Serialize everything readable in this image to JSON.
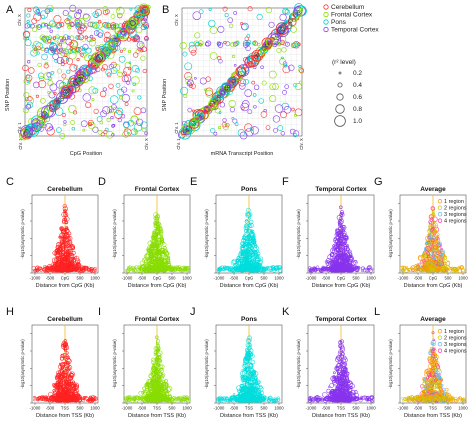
{
  "panels": {
    "A": {
      "label": "A",
      "xlabel": "CpG Position",
      "ylabel": "SNP Position",
      "y_top": "Chr. X",
      "y_bottom": "Chr. 1",
      "x_left": "Chr. 1",
      "x_right": "Chr. X"
    },
    "B": {
      "label": "B",
      "xlabel": "mRNA Transcript Position",
      "ylabel": "SNP Position",
      "y_top": "Chr. X",
      "y_bottom": "Chr. 1",
      "x_left": "Chr. 1",
      "x_right": "Chr. X"
    }
  },
  "legend_regions": {
    "items": [
      {
        "label": "Cerebellum",
        "color": "#ff3333"
      },
      {
        "label": "Frontal Cortex",
        "color": "#88dd00"
      },
      {
        "label": "Pons",
        "color": "#00cccc"
      },
      {
        "label": "Temporal Cortex",
        "color": "#8844ee"
      }
    ]
  },
  "legend_r2": {
    "title": "(r² level)",
    "levels": [
      "0.2",
      "0.4",
      "0.6",
      "0.8",
      "1.0"
    ]
  },
  "row1": {
    "xlabel": "Distance from CpG (Kb)",
    "ylabel": "-log10(asymptotic p-value)",
    "center_tick": "CpG",
    "panels": [
      {
        "label": "C",
        "title": "Cerebellum",
        "color": "#ff2222"
      },
      {
        "label": "D",
        "title": "Frontal Cortex",
        "color": "#88dd00"
      },
      {
        "label": "E",
        "title": "Pons",
        "color": "#00dddd"
      },
      {
        "label": "F",
        "title": "Temporal Cortex",
        "color": "#8833ee"
      },
      {
        "label": "G",
        "title": "Average",
        "color": "mixed"
      }
    ]
  },
  "row2": {
    "xlabel": "Distance from TSS (Kb)",
    "ylabel": "-log10(asymptotic p-value)",
    "center_tick": "TSS",
    "panels": [
      {
        "label": "H",
        "title": "Cerebellum",
        "color": "#ff2222"
      },
      {
        "label": "I",
        "title": "Frontal Cortex",
        "color": "#88dd00"
      },
      {
        "label": "J",
        "title": "Pons",
        "color": "#00dddd"
      },
      {
        "label": "K",
        "title": "Temporal Cortex",
        "color": "#8833ee"
      },
      {
        "label": "L",
        "title": "Average",
        "color": "mixed"
      }
    ]
  },
  "x_ticks": [
    "-1000",
    "-500",
    "0",
    "500",
    "1000"
  ],
  "region_legend": {
    "items": [
      {
        "label": "1 region",
        "color": "#ff9900"
      },
      {
        "label": "2 regions",
        "color": "#cccc00"
      },
      {
        "label": "3 regions",
        "color": "#55bbff"
      },
      {
        "label": "4 regions",
        "color": "#ff33aa"
      }
    ]
  }
}
